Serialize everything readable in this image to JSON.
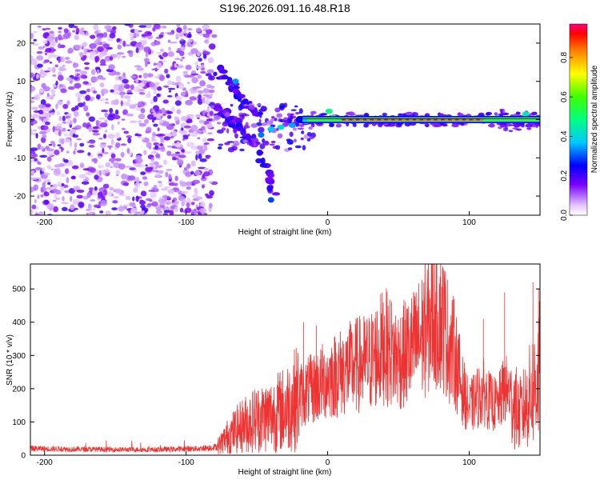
{
  "title": "S196.2026.091.16.48.R18",
  "chart_data": [
    {
      "type": "heatmap",
      "name": "spectrogram",
      "xlabel": "Height of straight line (km)",
      "ylabel": "Frequency (Hz)",
      "xlim": [
        -210,
        150
      ],
      "ylim": [
        -25,
        25
      ],
      "xticks": [
        -200,
        -100,
        0,
        100
      ],
      "yticks": [
        -20,
        -10,
        0,
        10,
        20
      ],
      "colorbar": {
        "label": "Normalized spectral amplitude",
        "range": [
          0,
          0.97
        ],
        "ticks": [
          0.0,
          0.2,
          0.4,
          0.6,
          0.8
        ],
        "tick_labels": [
          "0.0",
          "0.2",
          "0.4",
          "0.6",
          "0.8"
        ]
      },
      "features": {
        "noise_region_x": [
          -210,
          -80
        ],
        "carrier_line": {
          "frequency": 0.0,
          "from_x": -20,
          "to_x": 150
        },
        "peak_region_x": [
          10,
          110
        ],
        "dispersed_branches": [
          {
            "x": [
              -78,
              -70,
              -62,
              -55,
              -48
            ],
            "y": [
              13,
              10,
              6,
              3,
              1
            ]
          },
          {
            "x": [
              -78,
              -70,
              -62,
              -52,
              -42,
              -38
            ],
            "y": [
              3,
              0,
              -2,
              -6,
              -14,
              -20
            ]
          }
        ]
      }
    },
    {
      "type": "line",
      "name": "snr",
      "xlabel": "Height of straight line (km)",
      "ylabel": "SNR (10 * v/v)",
      "xlim": [
        -210,
        150
      ],
      "ylim": [
        0,
        575
      ],
      "xticks": [
        -200,
        -100,
        0,
        100
      ],
      "yticks": [
        0,
        100,
        200,
        300,
        400,
        500
      ],
      "color": "#ee3333",
      "envelope": {
        "x": [
          -210,
          -180,
          -150,
          -120,
          -90,
          -78,
          -70,
          -60,
          -50,
          -40,
          -30,
          -20,
          -10,
          0,
          10,
          20,
          30,
          40,
          50,
          60,
          70,
          75,
          80,
          85,
          90,
          95,
          100,
          105,
          110,
          115,
          120,
          125,
          130,
          135,
          140,
          145,
          150
        ],
        "y": [
          20,
          18,
          17,
          17,
          20,
          25,
          60,
          90,
          110,
          120,
          140,
          180,
          200,
          230,
          250,
          270,
          280,
          330,
          290,
          320,
          380,
          430,
          420,
          350,
          300,
          200,
          140,
          170,
          190,
          160,
          150,
          200,
          180,
          120,
          150,
          200,
          250
        ]
      },
      "spikes": [
        {
          "x": -17,
          "y": 400
        },
        {
          "x": -8,
          "y": 390
        },
        {
          "x": 40,
          "y": 420
        },
        {
          "x": 62,
          "y": 450
        },
        {
          "x": 77,
          "y": 575
        },
        {
          "x": 110,
          "y": 410
        },
        {
          "x": 125,
          "y": 490
        },
        {
          "x": 145,
          "y": 520
        },
        {
          "x": 149,
          "y": 500
        }
      ]
    }
  ]
}
